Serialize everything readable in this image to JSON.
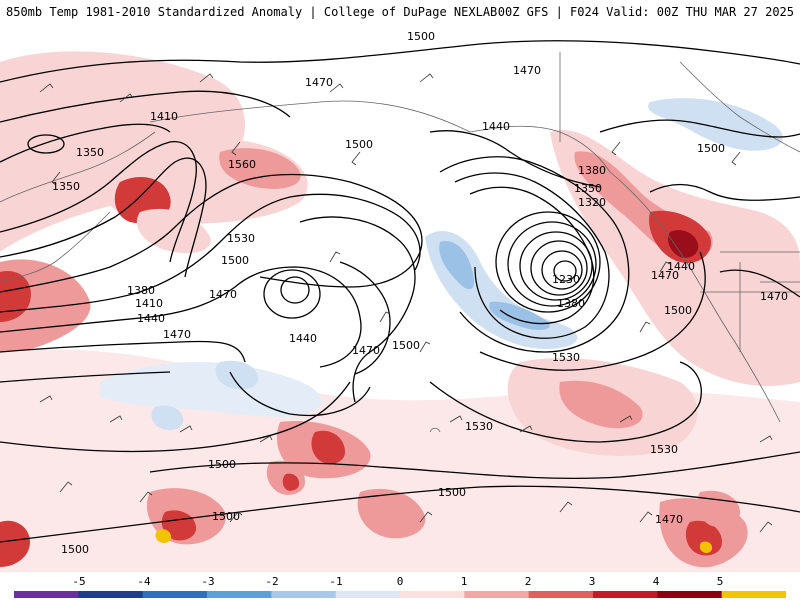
{
  "header": {
    "left": "850mb Temp 1981-2010 Standardized Anomaly | College of DuPage NEXLAB",
    "right": "00Z GFS | F024 Valid: 00Z THU MAR 27 2025"
  },
  "colorbar": {
    "ticks": [
      "-5",
      "-4",
      "-3",
      "-2",
      "-1",
      "0",
      "1",
      "2",
      "3",
      "4",
      "5"
    ],
    "colors": [
      "#6a2fa0",
      "#1f3d8c",
      "#2f6fbf",
      "#5aa0dc",
      "#a8c8ea",
      "#dde8f4",
      "#fbe0e0",
      "#f4a6a6",
      "#e06060",
      "#c01c2a",
      "#8a0010",
      "#f2c400"
    ]
  },
  "map": {
    "colors": {
      "land": "#ffffff",
      "warm_light": "#f8d4d4",
      "warm_mid": "#ee9a9a",
      "warm_strong": "#d23a3a",
      "warm_extreme": "#9a0d1a",
      "cold_light": "#cfe0f2",
      "cold_mid": "#9cc1e6",
      "contour": "#000000",
      "coast": "#555555"
    },
    "contour_labels": [
      "1500",
      "1470",
      "1470",
      "1410",
      "1350",
      "1350",
      "1500",
      "1560",
      "1440",
      "1500",
      "1530",
      "1470",
      "1380",
      "1410",
      "1440",
      "1470",
      "1500",
      "1440",
      "1470",
      "1500",
      "1380",
      "1350",
      "1320",
      "1230",
      "1380",
      "1530",
      "1440",
      "1470",
      "1500",
      "1470",
      "1530",
      "1530",
      "1500",
      "1500",
      "1500",
      "1500",
      "1470"
    ]
  }
}
